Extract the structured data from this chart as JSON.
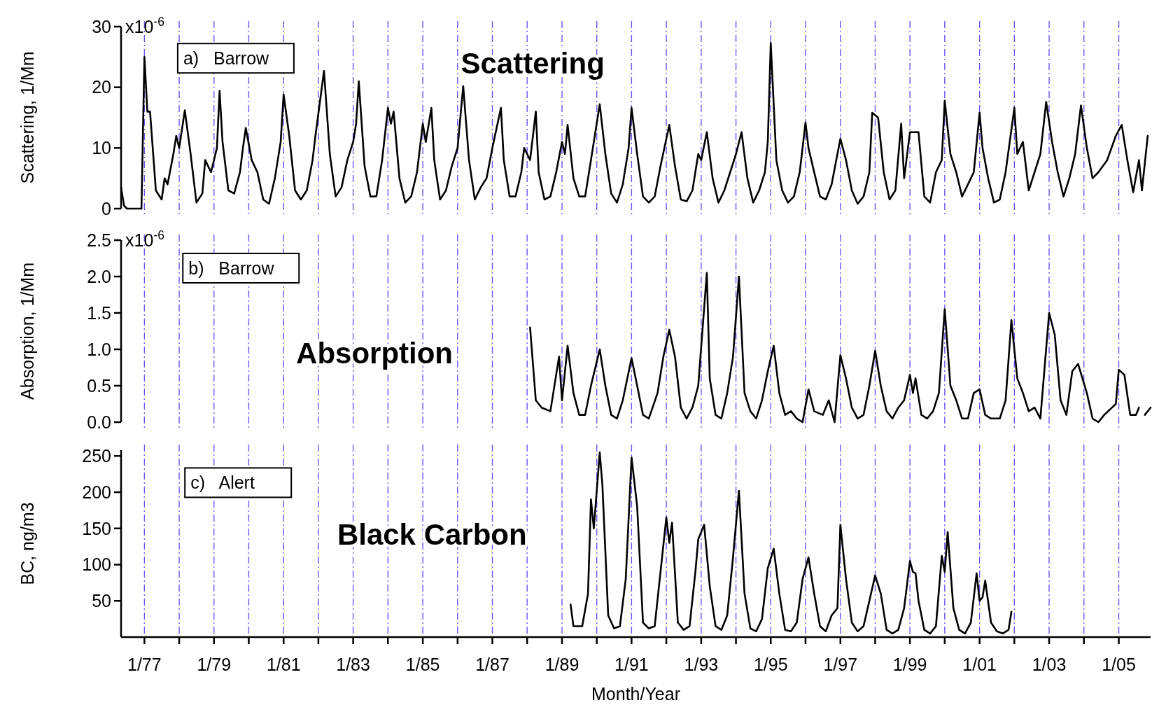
{
  "chart_data": [
    {
      "type": "line",
      "title": "Scattering",
      "ylabel": "Scattering, 1/Mm",
      "annotations": [
        "a)   Barrow",
        "x10$^{-6}$"
      ],
      "grid": "x",
      "tick_labels": "y",
      "color": "#000000",
      "xlim": [
        "1976-05",
        "2005-12"
      ],
      "xticks": [
        {
          "value": "1977-01",
          "label": null
        },
        {
          "value": "1978-01",
          "label": null
        },
        {
          "value": "1979-01",
          "label": null
        },
        {
          "value": "1980-01",
          "label": null
        },
        {
          "value": "1981-01",
          "label": null
        },
        {
          "value": "1982-01",
          "label": null
        },
        {
          "value": "1983-01",
          "label": null
        },
        {
          "value": "1984-01",
          "label": null
        },
        {
          "value": "1985-01",
          "label": null
        },
        {
          "value": "1986-01",
          "label": null
        },
        {
          "value": "1987-01",
          "label": null
        },
        {
          "value": "1988-01",
          "label": null
        },
        {
          "value": "1989-01",
          "label": null
        },
        {
          "value": "1990-01",
          "label": null
        },
        {
          "value": "1991-01",
          "label": null
        },
        {
          "value": "1992-01",
          "label": null
        },
        {
          "value": "1993-01",
          "label": null
        },
        {
          "value": "1994-01",
          "label": null
        },
        {
          "value": "1995-01",
          "label": null
        },
        {
          "value": "1996-01",
          "label": null
        },
        {
          "value": "1997-01",
          "label": null
        },
        {
          "value": "1998-01",
          "label": null
        },
        {
          "value": "1999-01",
          "label": null
        },
        {
          "value": "2000-01",
          "label": null
        },
        {
          "value": "2001-01",
          "label": null
        },
        {
          "value": "2002-01",
          "label": null
        },
        {
          "value": "2003-01",
          "label": null
        },
        {
          "value": "2004-01",
          "label": null
        },
        {
          "value": "2005-01",
          "label": null
        }
      ],
      "ylim": [
        0,
        30
      ],
      "yticks": [
        0,
        10,
        20,
        30
      ],
      "x": [
        "1976-05",
        "1976-06",
        "1976-07",
        "1976-12",
        "1977-01",
        "1977-02",
        "1977-03",
        "1977-05",
        "1977-07",
        "1977-08",
        "1977-09",
        "1977-11",
        "1977-12",
        "1978-01",
        "1978-03",
        "1978-05",
        "1978-07",
        "1978-09",
        "1978-10",
        "1978-12",
        "1979-02",
        "1979-03",
        "1979-04",
        "1979-06",
        "1979-08",
        "1979-10",
        "1979-11",
        "1979-12",
        "1980-02",
        "1980-04",
        "1980-06",
        "1980-08",
        "1980-10",
        "1980-12",
        "1981-01",
        "1981-03",
        "1981-05",
        "1981-07",
        "1981-09",
        "1981-11",
        "1981-12",
        "1982-03",
        "1982-05",
        "1982-07",
        "1982-09",
        "1982-11",
        "1983-01",
        "1983-02",
        "1983-03",
        "1983-05",
        "1983-07",
        "1983-09",
        "1983-11",
        "1984-01",
        "1984-02",
        "1984-03",
        "1984-05",
        "1984-07",
        "1984-09",
        "1984-11",
        "1985-01",
        "1985-02",
        "1985-04",
        "1985-05",
        "1985-07",
        "1985-09",
        "1985-11",
        "1986-01",
        "1986-03",
        "1986-05",
        "1986-07",
        "1986-09",
        "1986-11",
        "1987-01",
        "1987-04",
        "1987-05",
        "1987-07",
        "1987-09",
        "1987-11",
        "1987-12",
        "1988-02",
        "1988-04",
        "1988-05",
        "1988-07",
        "1988-09",
        "1988-11",
        "1989-01",
        "1989-02",
        "1989-03",
        "1989-05",
        "1989-07",
        "1989-09",
        "1989-11",
        "1990-02",
        "1990-04",
        "1990-06",
        "1990-08",
        "1990-10",
        "1990-12",
        "1991-01",
        "1991-03",
        "1991-05",
        "1991-07",
        "1991-09",
        "1991-11",
        "1992-02",
        "1992-04",
        "1992-06",
        "1992-08",
        "1992-10",
        "1992-12",
        "1993-01",
        "1993-03",
        "1993-05",
        "1993-07",
        "1993-09",
        "1993-11",
        "1994-01",
        "1994-03",
        "1994-05",
        "1994-07",
        "1994-09",
        "1994-11",
        "1994-12",
        "1995-01",
        "1995-03",
        "1995-05",
        "1995-07",
        "1995-09",
        "1995-11",
        "1995-12",
        "1996-01",
        "1996-02",
        "1996-04",
        "1996-06",
        "1996-08",
        "1996-10",
        "1996-12",
        "1997-01",
        "1997-03",
        "1997-05",
        "1997-07",
        "1997-09",
        "1997-11",
        "1997-12",
        "1998-02",
        "1998-04",
        "1998-06",
        "1998-08",
        "1998-10",
        "1998-11",
        "1999-01",
        "1999-04",
        "1999-06",
        "1999-08",
        "1999-10",
        "1999-12",
        "2000-01",
        "2000-03",
        "2000-05",
        "2000-07",
        "2000-09",
        "2000-11",
        "2001-01",
        "2001-02",
        "2001-04",
        "2001-06",
        "2001-08",
        "2001-10",
        "2002-01",
        "2002-02",
        "2002-04",
        "2002-06",
        "2002-08",
        "2002-10",
        "2002-12",
        "2003-02",
        "2003-04",
        "2003-06",
        "2003-08",
        "2003-10",
        "2003-12",
        "2004-02",
        "2004-04",
        "2004-06",
        "2004-09",
        "2004-12",
        "2005-02",
        "2005-04",
        "2005-06",
        "2005-08",
        "2005-09",
        "2005-11"
      ],
      "values": [
        3.5,
        0.5,
        0,
        0,
        25,
        16,
        16,
        3,
        1.5,
        5,
        4,
        9,
        12,
        10,
        16.2,
        9,
        1,
        2.5,
        8,
        6,
        10,
        19.4,
        11,
        3,
        2.5,
        6,
        10,
        13.3,
        8,
        6,
        1.5,
        0.8,
        5,
        11,
        18.8,
        12,
        3,
        1.5,
        3,
        8,
        12,
        22.7,
        9,
        2,
        3.5,
        8,
        11,
        14,
        21,
        7,
        2,
        2,
        8,
        16.6,
        14,
        16,
        5,
        1,
        2,
        6,
        14,
        11,
        16.6,
        8,
        1.5,
        3,
        7,
        10,
        20.2,
        8,
        1.5,
        3.5,
        5,
        10,
        16.6,
        8,
        2,
        2,
        6,
        10,
        8,
        16,
        6,
        1.5,
        2,
        6,
        11,
        9,
        13.8,
        5,
        2,
        2,
        8,
        17.2,
        9,
        2.5,
        1,
        4,
        10,
        16.6,
        9,
        2,
        1,
        2,
        7,
        13.8,
        7,
        1.5,
        1.2,
        3,
        9,
        8,
        12.6,
        5,
        1,
        3,
        6,
        9,
        12.6,
        5,
        1,
        3,
        6,
        11,
        27.3,
        8,
        3,
        1,
        2,
        6,
        10,
        14.2,
        10,
        6,
        2,
        1.5,
        4,
        9,
        11.5,
        8,
        3,
        0.8,
        2,
        6,
        15.8,
        15,
        6,
        1.5,
        3,
        14,
        5,
        12.6,
        12.6,
        2,
        1,
        6,
        8,
        17.8,
        9,
        6,
        2,
        4,
        6,
        15.8,
        10,
        5,
        1,
        1.5,
        6,
        16.6,
        9,
        11,
        3,
        6,
        9,
        17.6,
        11,
        6,
        2,
        5,
        9,
        17,
        10,
        5,
        6,
        8,
        12,
        13.8,
        8,
        2.7,
        8,
        3,
        12
      ]
    },
    {
      "type": "line",
      "title": "Absorption",
      "ylabel": "Absorption, 1/Mm",
      "annotations": [
        "b)   Barrow",
        "x10$^{-6}$"
      ],
      "grid": "x",
      "tick_labels": "y",
      "color": "#000000",
      "xlim": [
        "1976-05",
        "2005-12"
      ],
      "xticks": [
        {
          "value": "1977-01",
          "label": null
        },
        {
          "value": "1978-01",
          "label": null
        },
        {
          "value": "1979-01",
          "label": null
        },
        {
          "value": "1980-01",
          "label": null
        },
        {
          "value": "1981-01",
          "label": null
        },
        {
          "value": "1982-01",
          "label": null
        },
        {
          "value": "1983-01",
          "label": null
        },
        {
          "value": "1984-01",
          "label": null
        },
        {
          "value": "1985-01",
          "label": null
        },
        {
          "value": "1986-01",
          "label": null
        },
        {
          "value": "1987-01",
          "label": null
        },
        {
          "value": "1988-01",
          "label": null
        },
        {
          "value": "1989-01",
          "label": null
        },
        {
          "value": "1990-01",
          "label": null
        },
        {
          "value": "1991-01",
          "label": null
        },
        {
          "value": "1992-01",
          "label": null
        },
        {
          "value": "1993-01",
          "label": null
        },
        {
          "value": "1994-01",
          "label": null
        },
        {
          "value": "1995-01",
          "label": null
        },
        {
          "value": "1996-01",
          "label": null
        },
        {
          "value": "1997-01",
          "label": null
        },
        {
          "value": "1998-01",
          "label": null
        },
        {
          "value": "1999-01",
          "label": null
        },
        {
          "value": "2000-01",
          "label": null
        },
        {
          "value": "2001-01",
          "label": null
        },
        {
          "value": "2002-01",
          "label": null
        },
        {
          "value": "2003-01",
          "label": null
        },
        {
          "value": "2004-01",
          "label": null
        },
        {
          "value": "2005-01",
          "label": null
        }
      ],
      "ylim": [
        0,
        2.5
      ],
      "yticks": [
        {
          "value": 0,
          "label": "0.0"
        },
        0.5,
        {
          "value": 1,
          "label": "1.0"
        },
        1.5,
        {
          "value": 2,
          "label": "2.0"
        },
        2.5
      ],
      "x": [
        "1988-02",
        "1988-04",
        "1988-06",
        "1988-09",
        "1988-12",
        "1989-01",
        "1989-03",
        "1989-05",
        "1989-07",
        "1989-09",
        "1989-11",
        "1990-02",
        "1990-04",
        "1990-06",
        "1990-08",
        "1990-10",
        "1991-01",
        "1991-03",
        "1991-05",
        "1991-07",
        "1991-10",
        "1991-12",
        "1992-02",
        "1992-04",
        "1992-06",
        "1992-08",
        "1992-10",
        "1992-12",
        "1993-03",
        "1993-04",
        "1993-06",
        "1993-08",
        "1993-10",
        "1993-12",
        "1994-02",
        "1994-04",
        "1994-06",
        "1994-08",
        "1994-10",
        "1994-12",
        "1995-02",
        "1995-04",
        "1995-06",
        "1995-08",
        "1995-10",
        "1995-12",
        "1996-02",
        "1996-04",
        "1996-07",
        "1996-09",
        "1996-11",
        "1997-01",
        "1997-03",
        "1997-05",
        "1997-07",
        "1997-09",
        "1997-11",
        "1998-01",
        "1998-03",
        "1998-05",
        "1998-07",
        "1998-09",
        "1998-11",
        "1999-01",
        "1999-02",
        "1999-03",
        "1999-05",
        "1999-07",
        "1999-09",
        "1999-11",
        "2000-01",
        "2000-03",
        "2000-05",
        "2000-07",
        "2000-09",
        "2000-11",
        "2001-01",
        "2001-03",
        "2001-05",
        "2001-08",
        "2001-10",
        "2001-12",
        "2002-02",
        "2002-04",
        "2002-06",
        "2002-08",
        "2002-10",
        "2003-01",
        "2003-03",
        "2003-05",
        "2003-07",
        "2003-09",
        "2003-11",
        "2004-02",
        "2004-04",
        "2004-06",
        "2004-08",
        "2004-12",
        "2005-01",
        "2005-03",
        "2005-05",
        "2005-07",
        "2005-08",
        "2005-09",
        "2005-10",
        "2005-12"
      ],
      "values": [
        1.3,
        0.3,
        0.2,
        0.15,
        0.9,
        0.3,
        1.05,
        0.4,
        0.1,
        0.1,
        0.5,
        1.0,
        0.5,
        0.1,
        0.05,
        0.3,
        0.88,
        0.5,
        0.1,
        0.05,
        0.4,
        0.9,
        1.27,
        0.9,
        0.2,
        0.05,
        0.2,
        0.5,
        2.05,
        0.6,
        0.1,
        0.05,
        0.4,
        0.9,
        2.0,
        0.4,
        0.15,
        0.05,
        0.3,
        0.7,
        1.05,
        0.4,
        0.1,
        0.15,
        0.05,
        0,
        0.45,
        0.15,
        0.1,
        0.3,
        0,
        0.92,
        0.6,
        0.2,
        0.05,
        0.1,
        0.5,
        0.98,
        0.5,
        0.15,
        0.05,
        0.2,
        0.3,
        0.65,
        0.4,
        0.6,
        0.1,
        0.05,
        0.15,
        0.4,
        1.55,
        0.5,
        0.3,
        0.05,
        0.05,
        0.4,
        0.45,
        0.1,
        0.05,
        0.05,
        0.3,
        1.4,
        0.6,
        0.4,
        0.15,
        0.2,
        0.05,
        1.5,
        1.2,
        0.3,
        0.1,
        0.7,
        0.8,
        0.4,
        0.05,
        0,
        0.1,
        0.25,
        0.72,
        0.65,
        0.1,
        0.1,
        0.2,
        null,
        0.1,
        0.2
      ]
    },
    {
      "type": "line",
      "title": "Black Carbon",
      "ylabel": "BC, ng/m3",
      "xlabel": "Month/Year",
      "annotations": [
        "c)   Alert"
      ],
      "grid": "x",
      "color": "#000000",
      "xlim": [
        "1976-05",
        "2005-12"
      ],
      "xticks": [
        {
          "value": "1977-01",
          "label": "1/77"
        },
        {
          "value": "1978-01",
          "label": null
        },
        {
          "value": "1979-01",
          "label": "1/79"
        },
        {
          "value": "1980-01",
          "label": null
        },
        {
          "value": "1981-01",
          "label": "1/81"
        },
        {
          "value": "1982-01",
          "label": null
        },
        {
          "value": "1983-01",
          "label": "1/83"
        },
        {
          "value": "1984-01",
          "label": null
        },
        {
          "value": "1985-01",
          "label": "1/85"
        },
        {
          "value": "1986-01",
          "label": null
        },
        {
          "value": "1987-01",
          "label": "1/87"
        },
        {
          "value": "1988-01",
          "label": null
        },
        {
          "value": "1989-01",
          "label": "1/89"
        },
        {
          "value": "1990-01",
          "label": null
        },
        {
          "value": "1991-01",
          "label": "1/91"
        },
        {
          "value": "1992-01",
          "label": null
        },
        {
          "value": "1993-01",
          "label": "1/93"
        },
        {
          "value": "1994-01",
          "label": null
        },
        {
          "value": "1995-01",
          "label": "1/95"
        },
        {
          "value": "1996-01",
          "label": null
        },
        {
          "value": "1997-01",
          "label": "1/97"
        },
        {
          "value": "1998-01",
          "label": null
        },
        {
          "value": "1999-01",
          "label": "1/99"
        },
        {
          "value": "2000-01",
          "label": null
        },
        {
          "value": "2001-01",
          "label": "1/01"
        },
        {
          "value": "2002-01",
          "label": null
        },
        {
          "value": "2003-01",
          "label": "1/03"
        },
        {
          "value": "2004-01",
          "label": null
        },
        {
          "value": "2005-01",
          "label": "1/05"
        }
      ],
      "ylim": [
        0,
        258
      ],
      "yticks": [
        50,
        100,
        150,
        200,
        250
      ],
      "x": [
        "1989-04",
        "1989-05",
        "1989-08",
        "1989-10",
        "1989-11",
        "1989-12",
        "1990-02",
        "1990-03",
        "1990-05",
        "1990-07",
        "1990-09",
        "1990-11",
        "1991-01",
        "1991-03",
        "1991-05",
        "1991-07",
        "1991-09",
        "1991-11",
        "1992-01",
        "1992-02",
        "1992-03",
        "1992-05",
        "1992-07",
        "1992-09",
        "1992-11",
        "1992-12",
        "1993-02",
        "1993-04",
        "1993-06",
        "1993-08",
        "1993-10",
        "1993-12",
        "1994-02",
        "1994-04",
        "1994-06",
        "1994-08",
        "1994-10",
        "1994-12",
        "1995-02",
        "1995-04",
        "1995-06",
        "1995-08",
        "1995-10",
        "1995-12",
        "1996-02",
        "1996-04",
        "1996-06",
        "1996-08",
        "1996-10",
        "1996-12",
        "1997-01",
        "1997-03",
        "1997-05",
        "1997-07",
        "1997-09",
        "1997-11",
        "1998-01",
        "1998-03",
        "1998-05",
        "1998-07",
        "1998-09",
        "1998-11",
        "1999-01",
        "1999-02",
        "1999-03",
        "1999-04",
        "1999-06",
        "1999-08",
        "1999-10",
        "1999-12",
        "2000-01",
        "2000-02",
        "2000-04",
        "2000-06",
        "2000-08",
        "2000-10",
        "2000-12",
        "2001-01",
        "2001-02",
        "2001-03",
        "2001-05",
        "2001-07",
        "2001-09",
        "2001-11",
        "2001-12"
      ],
      "values": [
        45,
        15,
        15,
        60,
        190,
        150,
        255,
        210,
        30,
        12,
        15,
        80,
        248,
        180,
        20,
        12,
        15,
        90,
        165,
        130,
        158,
        20,
        10,
        15,
        90,
        135,
        155,
        70,
        15,
        10,
        30,
        110,
        202,
        60,
        12,
        8,
        25,
        95,
        122,
        60,
        10,
        8,
        20,
        80,
        110,
        60,
        15,
        8,
        30,
        40,
        155,
        80,
        20,
        8,
        15,
        50,
        85,
        60,
        10,
        5,
        10,
        40,
        105,
        90,
        88,
        50,
        10,
        5,
        15,
        112,
        90,
        145,
        40,
        10,
        5,
        20,
        88,
        50,
        55,
        78,
        20,
        8,
        5,
        10,
        35
      ]
    }
  ]
}
